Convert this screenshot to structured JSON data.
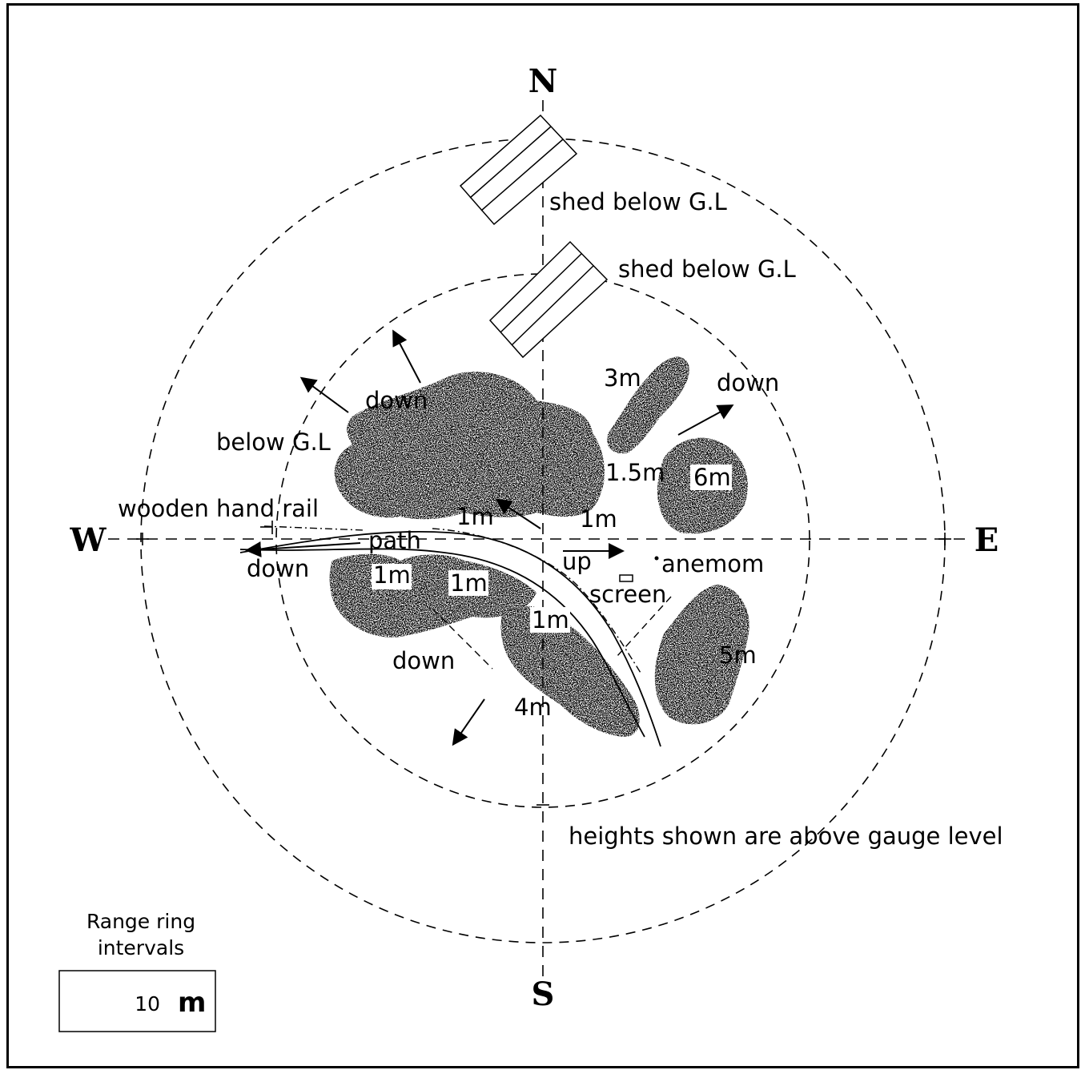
{
  "compass": {
    "north": "N",
    "south": "S",
    "east": "E",
    "west": "W"
  },
  "labels": {
    "shed_outer": "shed below G.L",
    "shed_inner": "shed below G.L",
    "down_nw": "down",
    "below_gl": "below G.L",
    "wooden_hand_rail": "wooden hand rail",
    "path": "path",
    "down_w": "down",
    "down_sw": "down",
    "down_ne": "down",
    "up": "up",
    "anemom": "anemom",
    "screen": "screen",
    "footnote": "heights shown are above gauge level"
  },
  "heights": {
    "h_3m": "3m",
    "h_1_5m": "1.5m",
    "h_6m": "6m",
    "h_1m_a": "1m",
    "h_1m_b": "1m",
    "h_1m_c": "1m",
    "h_1m_d": "1m",
    "h_1m_e": "1m",
    "h_5m": "5m",
    "h_4m": "4m"
  },
  "legend": {
    "title_line1": "Range ring",
    "title_line2": "intervals",
    "value": "10",
    "unit": "m"
  }
}
